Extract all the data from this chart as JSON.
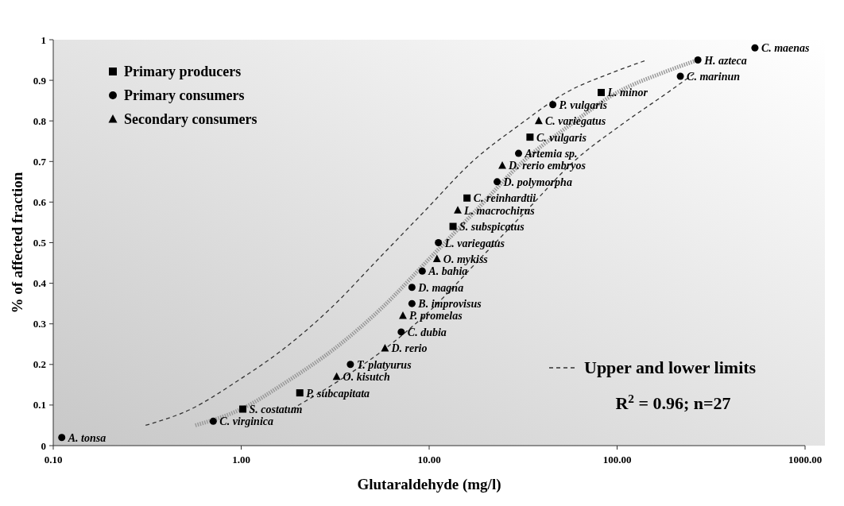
{
  "chart_data": {
    "type": "scatter",
    "xlabel": "Glutaraldehyde (mg/l)",
    "ylabel": "% of affected fraction",
    "log": "x",
    "grid": false,
    "legend": "top left",
    "xlim": [
      0.1,
      1000
    ],
    "xticks": [
      {
        "value": 0.1,
        "label": "0.10"
      },
      {
        "value": 1,
        "label": "1.00"
      },
      {
        "value": 10,
        "label": "10.00"
      },
      {
        "value": 100,
        "label": "100.00"
      },
      {
        "value": 1000,
        "label": "1000.00"
      }
    ],
    "ylim": [
      0,
      1
    ],
    "yticks": [
      0,
      0.1,
      0.2,
      0.3,
      0.4,
      0.5,
      0.6,
      0.7,
      0.8,
      0.9,
      1
    ],
    "series": [
      {
        "name": "Primary producers",
        "type": "scatter",
        "marker": "square",
        "color": "#000000",
        "x": [
          1.02,
          2.05,
          13.4,
          15.9,
          34.4,
          82.3
        ],
        "values": [
          0.09,
          0.13,
          0.54,
          0.61,
          0.76,
          0.87
        ]
      },
      {
        "name": "Primary consumers",
        "type": "scatter",
        "marker": "circle",
        "color": "#000000",
        "x": [
          0.111,
          0.71,
          3.81,
          7.1,
          8.1,
          8.1,
          9.19,
          11.2,
          23,
          29.9,
          45.5,
          217,
          269,
          541
        ],
        "values": [
          0.02,
          0.06,
          0.2,
          0.28,
          0.35,
          0.39,
          0.43,
          0.5,
          0.65,
          0.72,
          0.84,
          0.91,
          0.95,
          0.98
        ]
      },
      {
        "name": "Secondary consumers",
        "type": "scatter",
        "marker": "triangle",
        "color": "#000000",
        "x": [
          3.22,
          5.82,
          7.25,
          11,
          14.2,
          24.5,
          38.3
        ],
        "values": [
          0.17,
          0.24,
          0.32,
          0.46,
          0.58,
          0.69,
          0.8
        ]
      },
      {
        "type": "line",
        "line_style": "dotted",
        "color": "#999999",
        "x": [
          0.57,
          1,
          1.78,
          3.16,
          5.62,
          10,
          17.8,
          31.6,
          56.2,
          100,
          178,
          269
        ],
        "values": [
          0.05,
          0.09,
          0.16,
          0.24,
          0.34,
          0.46,
          0.58,
          0.7,
          0.79,
          0.87,
          0.92,
          0.95
        ]
      },
      {
        "name": "Upper and lower limits",
        "type": "line",
        "line_style": "dashed",
        "color": "#333333",
        "x": [
          0.31,
          0.54,
          0.96,
          1.7,
          3.02,
          5.37,
          9.56,
          17,
          30.2,
          53.7,
          95.6,
          144
        ],
        "values": [
          0.05,
          0.09,
          0.16,
          0.24,
          0.34,
          0.46,
          0.58,
          0.7,
          0.79,
          0.87,
          0.92,
          0.95
        ]
      },
      {
        "type": "line",
        "line_style": "dashed",
        "color": "#333333",
        "x": [
          1.86,
          3.31,
          5.88,
          10.5,
          18.6,
          33.1,
          58.8,
          105,
          186,
          263
        ],
        "values": [
          0.09,
          0.16,
          0.24,
          0.34,
          0.46,
          0.58,
          0.7,
          0.79,
          0.87,
          0.92
        ]
      }
    ],
    "annotations": [
      {
        "text": "S. costatum",
        "x": 1.02,
        "y": 0.09
      },
      {
        "text": "P. subcapitata",
        "x": 2.05,
        "y": 0.13
      },
      {
        "text": "S. subspicatus",
        "x": 13.4,
        "y": 0.54
      },
      {
        "text": "C. reinhardtii",
        "x": 15.9,
        "y": 0.61
      },
      {
        "text": "C. vulgaris",
        "x": 34.4,
        "y": 0.76
      },
      {
        "text": "L. minor",
        "x": 82.3,
        "y": 0.87
      },
      {
        "text": "A. tonsa",
        "x": 0.111,
        "y": 0.02
      },
      {
        "text": "C. virginica",
        "x": 0.71,
        "y": 0.06
      },
      {
        "text": "T. platyurus",
        "x": 3.81,
        "y": 0.2
      },
      {
        "text": "C. dubia",
        "x": 7.1,
        "y": 0.28
      },
      {
        "text": "B. improvisus",
        "x": 8.1,
        "y": 0.35
      },
      {
        "text": "D. magna",
        "x": 8.1,
        "y": 0.39
      },
      {
        "text": "A. bahia",
        "x": 9.19,
        "y": 0.43
      },
      {
        "text": "L. variegatus",
        "x": 11.2,
        "y": 0.5
      },
      {
        "text": "D. polymorpha",
        "x": 23,
        "y": 0.65
      },
      {
        "text": "Artemia sp.",
        "x": 29.9,
        "y": 0.72
      },
      {
        "text": "P. vulgaris",
        "x": 45.5,
        "y": 0.84
      },
      {
        "text": "C. marinun",
        "x": 217,
        "y": 0.91
      },
      {
        "text": "H. azteca",
        "x": 269,
        "y": 0.95
      },
      {
        "text": "C. maenas",
        "x": 541,
        "y": 0.98
      },
      {
        "text": "O. kisutch",
        "x": 3.22,
        "y": 0.17
      },
      {
        "text": "D. rerio",
        "x": 5.82,
        "y": 0.24
      },
      {
        "text": "P. promelas",
        "x": 7.25,
        "y": 0.32
      },
      {
        "text": "O. mykiss",
        "x": 11,
        "y": 0.46
      },
      {
        "text": "L. macrochirus",
        "x": 14.2,
        "y": 0.58
      },
      {
        "text": "D. rerio embryos",
        "x": 24.5,
        "y": 0.69
      },
      {
        "text": "C. variegatus",
        "x": 38.3,
        "y": 0.8
      },
      "R$^{2}$ = 0.96; n=27"
    ]
  }
}
